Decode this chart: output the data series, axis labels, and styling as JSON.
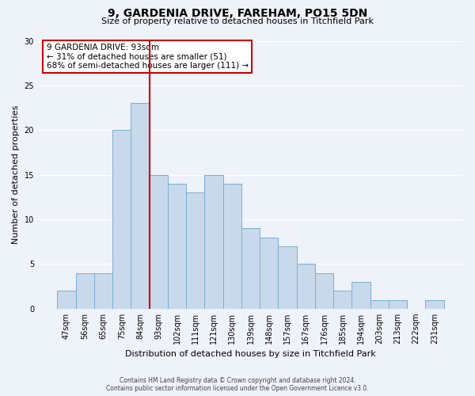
{
  "title": "9, GARDENIA DRIVE, FAREHAM, PO15 5DN",
  "subtitle": "Size of property relative to detached houses in Titchfield Park",
  "xlabel": "Distribution of detached houses by size in Titchfield Park",
  "ylabel": "Number of detached properties",
  "bar_labels": [
    "47sqm",
    "56sqm",
    "65sqm",
    "75sqm",
    "84sqm",
    "93sqm",
    "102sqm",
    "111sqm",
    "121sqm",
    "130sqm",
    "139sqm",
    "148sqm",
    "157sqm",
    "167sqm",
    "176sqm",
    "185sqm",
    "194sqm",
    "203sqm",
    "213sqm",
    "222sqm",
    "231sqm"
  ],
  "bar_values": [
    2,
    4,
    4,
    20,
    23,
    15,
    14,
    13,
    15,
    14,
    9,
    8,
    7,
    5,
    4,
    2,
    3,
    1,
    1,
    0,
    1
  ],
  "bar_color": "#c9d9ec",
  "bar_edgecolor": "#7aaece",
  "vline_x_index": 5,
  "vline_color": "#cc0000",
  "annotation_title": "9 GARDENIA DRIVE: 93sqm",
  "annotation_line1": "← 31% of detached houses are smaller (51)",
  "annotation_line2": "68% of semi-detached houses are larger (111) →",
  "annotation_box_edgecolor": "#cc0000",
  "ylim": [
    0,
    30
  ],
  "yticks": [
    0,
    5,
    10,
    15,
    20,
    25,
    30
  ],
  "footer1": "Contains HM Land Registry data © Crown copyright and database right 2024.",
  "footer2": "Contains public sector information licensed under the Open Government Licence v3.0.",
  "bg_color": "#eef2f9",
  "plot_bg_color": "#eef2f9",
  "grid_color": "#ffffff",
  "title_fontsize": 10,
  "subtitle_fontsize": 8,
  "axis_label_fontsize": 8,
  "tick_fontsize": 7,
  "annotation_fontsize": 7.5,
  "footer_fontsize": 5.5
}
